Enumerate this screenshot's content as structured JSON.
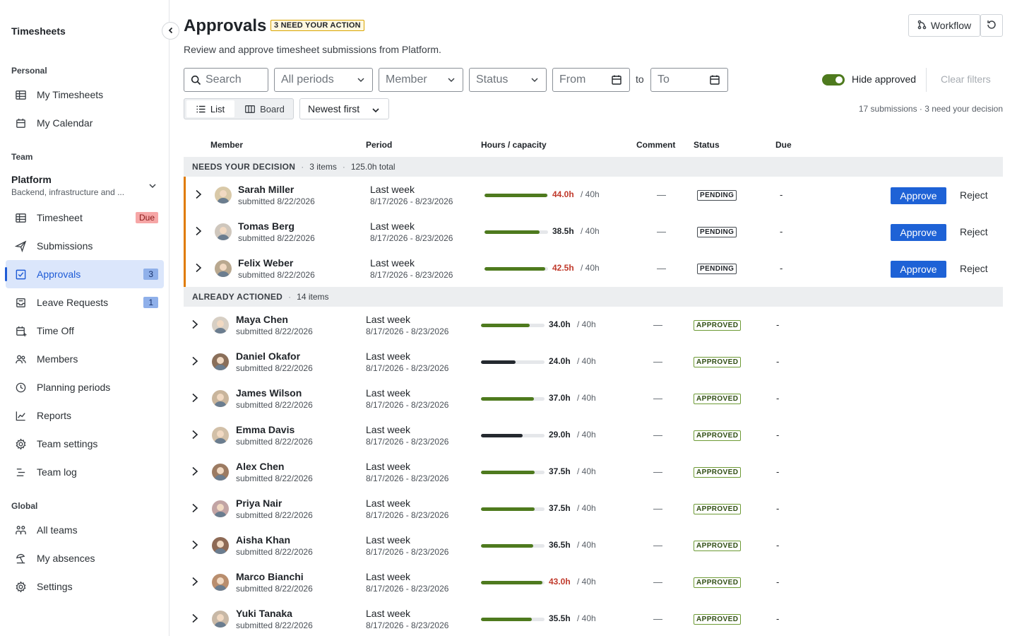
{
  "sidebar": {
    "app_title": "Timesheets",
    "sections": {
      "personal": "Personal",
      "team": "Team",
      "global": "Global"
    },
    "personal_items": [
      {
        "label": "My Timesheets",
        "icon": "table-icon"
      },
      {
        "label": "My Calendar",
        "icon": "calendar-icon"
      }
    ],
    "team": {
      "name": "Platform",
      "description": "Backend, infrastructure and ..."
    },
    "team_items": [
      {
        "label": "Timesheet",
        "icon": "table-icon",
        "badge": "Due"
      },
      {
        "label": "Submissions",
        "icon": "send-icon"
      },
      {
        "label": "Approvals",
        "icon": "checkbox-icon",
        "badge": "3"
      },
      {
        "label": "Leave Requests",
        "icon": "inbox-icon",
        "badge": "1"
      },
      {
        "label": "Time Off",
        "icon": "calendar-plus-icon"
      },
      {
        "label": "Members",
        "icon": "users-icon"
      },
      {
        "label": "Planning periods",
        "icon": "clock-icon"
      },
      {
        "label": "Reports",
        "icon": "chart-icon"
      },
      {
        "label": "Team settings",
        "icon": "gear-icon"
      },
      {
        "label": "Team log",
        "icon": "log-icon"
      }
    ],
    "global_items": [
      {
        "label": "All teams",
        "icon": "teams-icon"
      },
      {
        "label": "My absences",
        "icon": "umbrella-icon"
      },
      {
        "label": "Settings",
        "icon": "gear-icon"
      }
    ]
  },
  "header": {
    "title": "Approvals",
    "badge": "3 NEED YOUR ACTION",
    "subtitle": "Review and approve timesheet submissions from Platform.",
    "workflow_label": "Workflow"
  },
  "filters": {
    "search_placeholder": "Search",
    "period": "All periods",
    "member": "Member",
    "status": "Status",
    "from": "From",
    "to_label": "to",
    "to": "To",
    "hide_approved_label": "Hide approved",
    "hide_approved": true,
    "clear_label": "Clear filters"
  },
  "view": {
    "list_label": "List",
    "board_label": "Board",
    "sort_label": "Newest first",
    "summary": "17 submissions · 3 need your decision"
  },
  "table": {
    "columns": {
      "member": "Member",
      "period": "Period",
      "hours": "Hours / capacity",
      "comment": "Comment",
      "status": "Status",
      "due": "Due"
    },
    "groups": [
      {
        "title": "NEEDS YOUR DECISION",
        "meta": [
          "3 items",
          "125.0h total"
        ],
        "rows": [
          {
            "name": "Sarah Miller",
            "submitted": "submitted 8/22/2026",
            "period": "Last week",
            "range": "8/17/2026 - 8/23/2026",
            "hours": "44.0h",
            "hours_value": 44.0,
            "capacity": "/ 40h",
            "comment": "—",
            "status": "PENDING",
            "due": "-",
            "over": true
          },
          {
            "name": "Tomas Berg",
            "submitted": "submitted 8/22/2026",
            "period": "Last week",
            "range": "8/17/2026 - 8/23/2026",
            "hours": "38.5h",
            "hours_value": 38.5,
            "capacity": "/ 40h",
            "comment": "—",
            "status": "PENDING",
            "due": "-",
            "over": false
          },
          {
            "name": "Felix Weber",
            "submitted": "submitted 8/22/2026",
            "period": "Last week",
            "range": "8/17/2026 - 8/23/2026",
            "hours": "42.5h",
            "hours_value": 42.5,
            "capacity": "/ 40h",
            "comment": "—",
            "status": "PENDING",
            "due": "-",
            "over": true
          }
        ]
      },
      {
        "title": "ALREADY ACTIONED",
        "meta": [
          "14 items"
        ],
        "rows": [
          {
            "name": "Maya Chen",
            "submitted": "submitted 8/22/2026",
            "period": "Last week",
            "range": "8/17/2026 - 8/23/2026",
            "hours": "34.0h",
            "hours_value": 34.0,
            "capacity": "/ 40h",
            "comment": "—",
            "status": "APPROVED",
            "due": "-",
            "over": false
          },
          {
            "name": "Daniel Okafor",
            "submitted": "submitted 8/22/2026",
            "period": "Last week",
            "range": "8/17/2026 - 8/23/2026",
            "hours": "24.0h",
            "hours_value": 24.0,
            "capacity": "/ 40h",
            "comment": "—",
            "status": "APPROVED",
            "due": "-",
            "over": false,
            "under": true
          },
          {
            "name": "James Wilson",
            "submitted": "submitted 8/22/2026",
            "period": "Last week",
            "range": "8/17/2026 - 8/23/2026",
            "hours": "37.0h",
            "hours_value": 37.0,
            "capacity": "/ 40h",
            "comment": "—",
            "status": "APPROVED",
            "due": "-",
            "over": false
          },
          {
            "name": "Emma Davis",
            "submitted": "submitted 8/22/2026",
            "period": "Last week",
            "range": "8/17/2026 - 8/23/2026",
            "hours": "29.0h",
            "hours_value": 29.0,
            "capacity": "/ 40h",
            "comment": "—",
            "status": "APPROVED",
            "due": "-",
            "over": false,
            "under": true
          },
          {
            "name": "Alex Chen",
            "submitted": "submitted 8/22/2026",
            "period": "Last week",
            "range": "8/17/2026 - 8/23/2026",
            "hours": "37.5h",
            "hours_value": 37.5,
            "capacity": "/ 40h",
            "comment": "—",
            "status": "APPROVED",
            "due": "-",
            "over": false
          },
          {
            "name": "Priya Nair",
            "submitted": "submitted 8/22/2026",
            "period": "Last week",
            "range": "8/17/2026 - 8/23/2026",
            "hours": "37.5h",
            "hours_value": 37.5,
            "capacity": "/ 40h",
            "comment": "—",
            "status": "APPROVED",
            "due": "-",
            "over": false
          },
          {
            "name": "Aisha Khan",
            "submitted": "submitted 8/22/2026",
            "period": "Last week",
            "range": "8/17/2026 - 8/23/2026",
            "hours": "36.5h",
            "hours_value": 36.5,
            "capacity": "/ 40h",
            "comment": "—",
            "status": "APPROVED",
            "due": "-",
            "over": false
          },
          {
            "name": "Marco Bianchi",
            "submitted": "submitted 8/22/2026",
            "period": "Last week",
            "range": "8/17/2026 - 8/23/2026",
            "hours": "43.0h",
            "hours_value": 43.0,
            "capacity": "/ 40h",
            "comment": "—",
            "status": "APPROVED",
            "due": "-",
            "over": true
          },
          {
            "name": "Yuki Tanaka",
            "submitted": "submitted 8/22/2026",
            "period": "Last week",
            "range": "8/17/2026 - 8/23/2026",
            "hours": "35.5h",
            "hours_value": 35.5,
            "capacity": "/ 40h",
            "comment": "—",
            "status": "APPROVED",
            "due": "-",
            "over": false
          }
        ]
      }
    ],
    "approve_label": "Approve",
    "reject_label": "Reject"
  },
  "colors": {
    "accent": "#1e62d6",
    "bar_ok": "#4e7a1e",
    "bar_under": "#24292f",
    "over_text": "#c0392b",
    "pending_border": "#e07b00"
  }
}
